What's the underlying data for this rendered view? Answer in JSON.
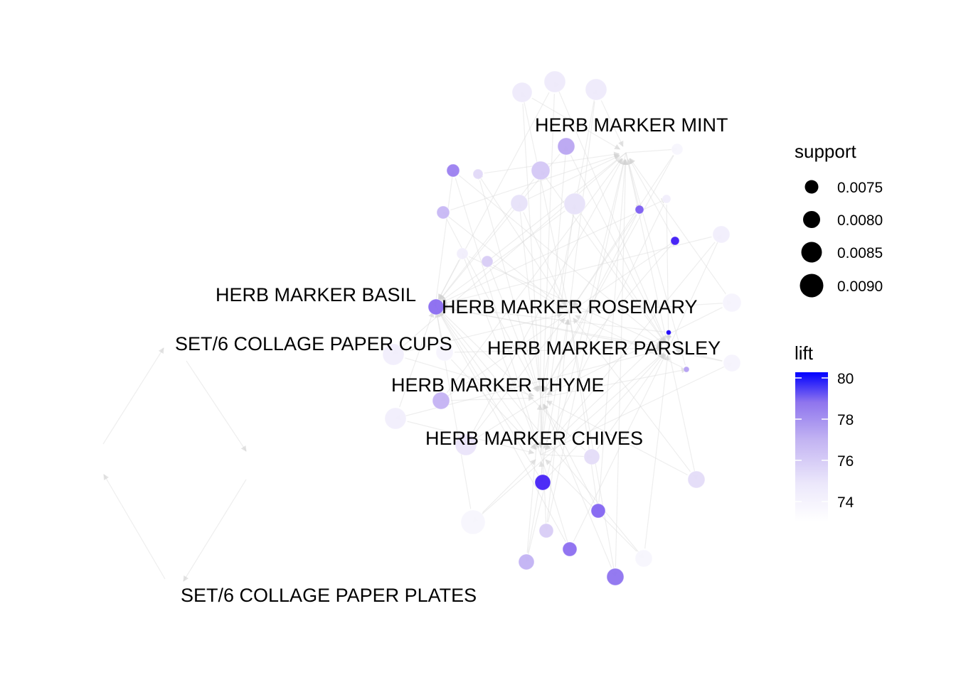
{
  "graph": {
    "item_labels": [
      "HERB MARKER MINT",
      "HERB MARKER BASIL",
      "HERB MARKER ROSEMARY",
      "SET/6 COLLAGE PAPER CUPS",
      "HERB MARKER PARSLEY",
      "HERB MARKER THYME",
      "HERB MARKER CHIVES",
      "SET/6 COLLAGE PAPER PLATES"
    ]
  },
  "legend": {
    "support": {
      "title": "support",
      "entries": [
        "0.0075",
        "0.0080",
        "0.0085",
        "0.0090"
      ]
    },
    "lift": {
      "title": "lift",
      "ticks": [
        "80",
        "78",
        "76",
        "74"
      ],
      "low_color": "#ffffff",
      "high_color": "#0000ff"
    }
  },
  "colors": {
    "edge": "#d9d9d9",
    "label": "#000000"
  }
}
